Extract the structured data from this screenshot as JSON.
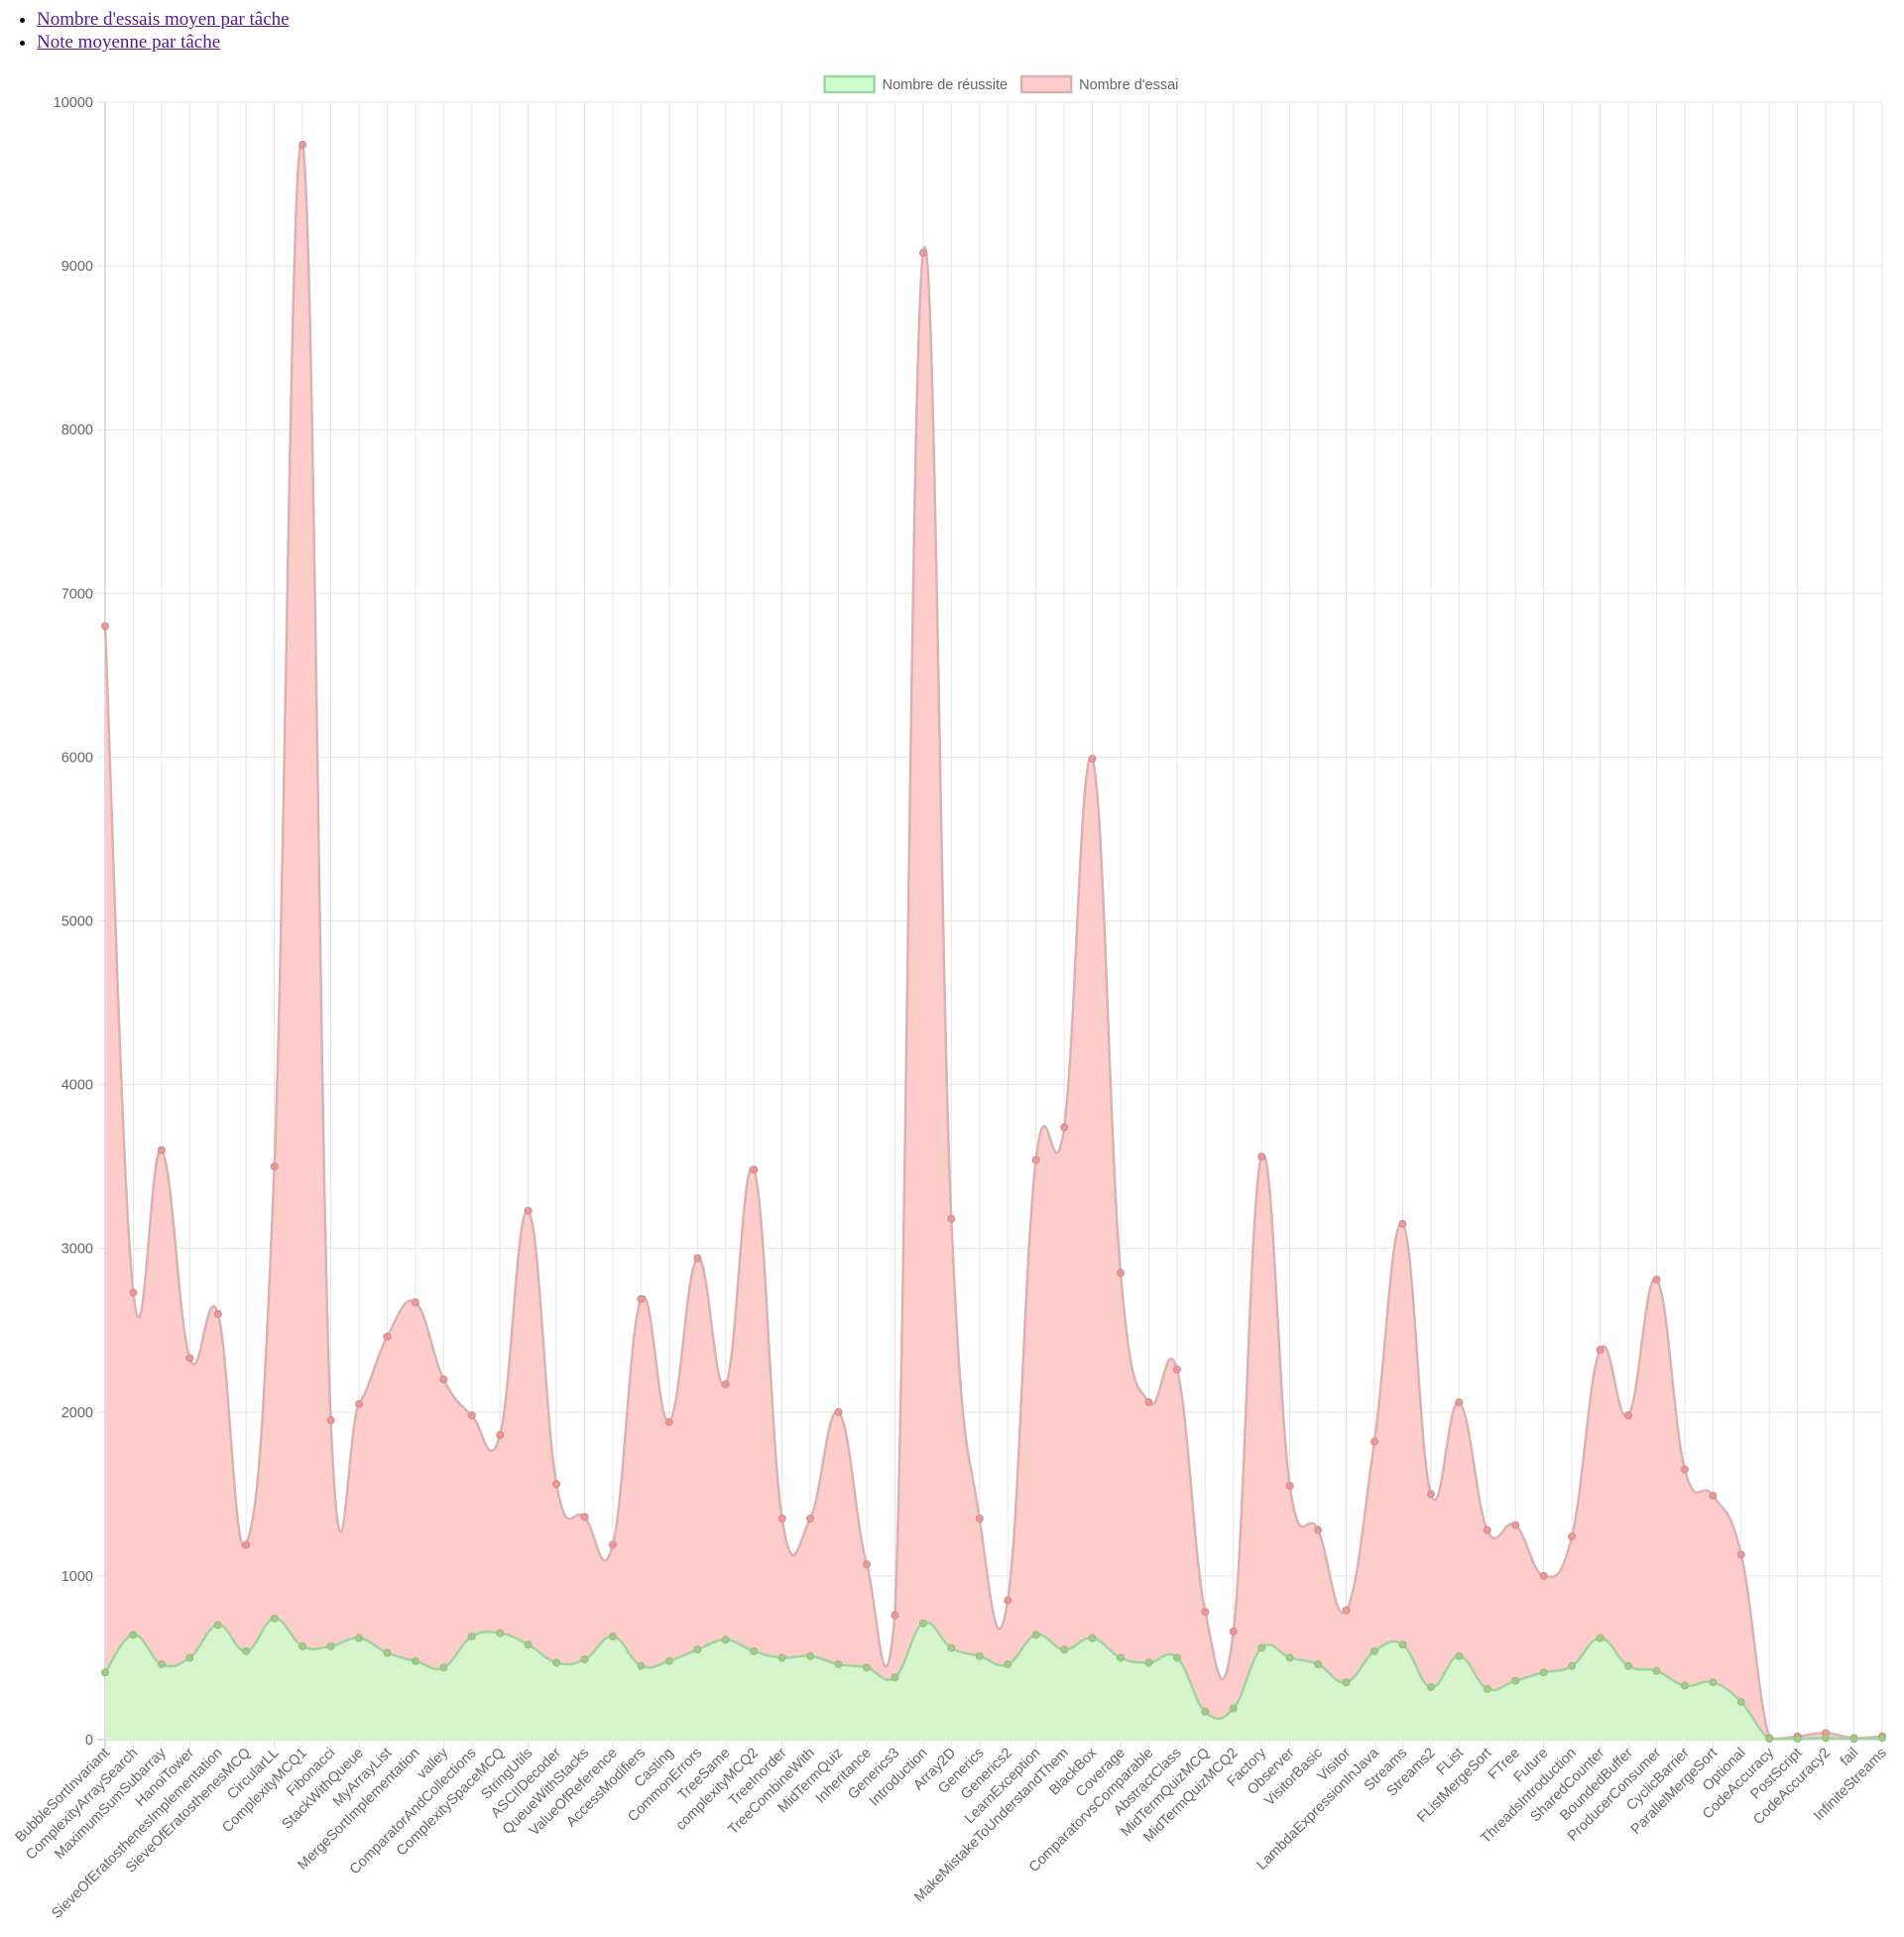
{
  "nav": {
    "links": [
      "Nombre d'essais moyen par tâche",
      "Note moyenne par tâche"
    ]
  },
  "chart_data": {
    "type": "area",
    "title": "",
    "xlabel": "",
    "ylabel": "",
    "ylim": [
      0,
      10000
    ],
    "yticks": [
      0,
      1000,
      2000,
      3000,
      4000,
      5000,
      6000,
      7000,
      8000,
      9000,
      10000
    ],
    "grid": true,
    "legend_position": "top-center",
    "categories": [
      "BubbleSortInvariant",
      "ComplexityArraySearch",
      "MaximumSumSubarray",
      "HanoiTower",
      "SieveOfEratosthenesImplementation",
      "SieveOfEratosthenesMCQ",
      "CircularLL",
      "ComplexityMCQ1",
      "Fibonacci",
      "StackWithQueue",
      "MyArrayList",
      "MergeSortImplementation",
      "valley",
      "ComparatorAndCollections",
      "ComplexitySpaceMCQ",
      "StringUtils",
      "ASCIIDecoder",
      "QueueWithStacks",
      "ValueOfReference",
      "AccessModifiers",
      "Casting",
      "CommonErrors",
      "TreeSame",
      "complexityMCQ2",
      "TreeInorder",
      "TreeCombineWith",
      "MidTermQuiz",
      "Inheritance",
      "Generics3",
      "Introduction",
      "Array2D",
      "Generics",
      "Generics2",
      "LearnException",
      "MakeMistakeToUnderstandThem",
      "BlackBox",
      "Coverage",
      "ComparatorvsComparable",
      "AbstractClass",
      "MidTermQuizMCQ",
      "MidTermQuizMCQ2",
      "Factory",
      "Observer",
      "VisitorBasic",
      "Visitor",
      "LambdaExpressionInJava",
      "Streams",
      "Streams2",
      "FList",
      "FListMergeSort",
      "FTree",
      "Future",
      "ThreadsIntroduction",
      "SharedCounter",
      "BoundedBuffer",
      "ProducerConsumer",
      "CyclicBarrier",
      "ParallelMergeSort",
      "Optional",
      "CodeAccuracy",
      "PostScript",
      "CodeAccuracy2",
      "fail",
      "InfiniteStreams"
    ],
    "series": [
      {
        "name": "Nombre de réussite",
        "color": "#ccffcc",
        "border_color": "#9fd39f",
        "values": [
          410,
          640,
          460,
          500,
          700,
          540,
          740,
          570,
          570,
          620,
          530,
          480,
          440,
          630,
          650,
          580,
          470,
          490,
          630,
          450,
          480,
          550,
          610,
          540,
          500,
          510,
          460,
          440,
          380,
          710,
          560,
          510,
          460,
          640,
          550,
          620,
          500,
          470,
          500,
          170,
          190,
          560,
          500,
          460,
          350,
          540,
          580,
          320,
          510,
          310,
          360,
          410,
          450,
          620,
          450,
          420,
          330,
          350,
          230,
          5,
          5,
          10,
          5,
          10
        ]
      },
      {
        "name": "Nombre d'essai",
        "color": "#ffcccc",
        "border_color": "#d9b3b3",
        "values": [
          6800,
          2730,
          3600,
          2330,
          2600,
          1190,
          3500,
          9740,
          1950,
          2050,
          2460,
          2670,
          2200,
          1980,
          1860,
          3230,
          1560,
          1360,
          1190,
          2690,
          1940,
          2940,
          2170,
          3480,
          1350,
          1350,
          2000,
          1070,
          760,
          9080,
          3180,
          1350,
          850,
          3540,
          3740,
          5990,
          2850,
          2060,
          2260,
          780,
          660,
          3560,
          1550,
          1280,
          790,
          1820,
          3150,
          1500,
          2060,
          1280,
          1310,
          1000,
          1240,
          2380,
          1980,
          2810,
          1650,
          1490,
          1130,
          10,
          20,
          40,
          10,
          20
        ]
      }
    ]
  }
}
